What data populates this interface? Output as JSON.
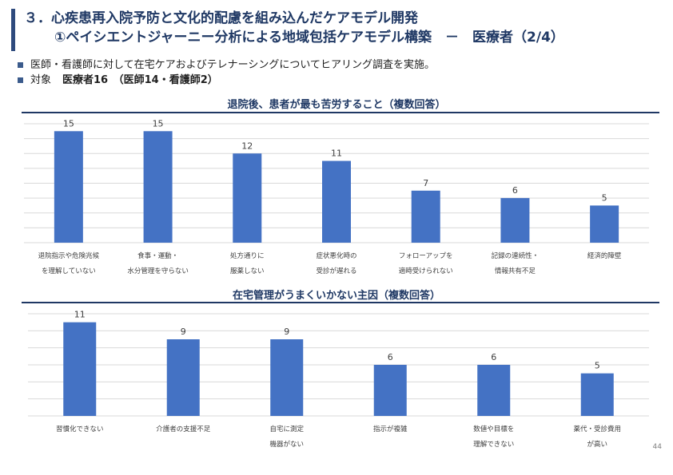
{
  "title": {
    "line1": "３．心疾患再入院予防と文化的配慮を組み込んだケアモデル開発",
    "line2": "①ペイシエントジャーニー分析による地域包括ケアモデル構築　－　医療者（2/4）"
  },
  "bullets": [
    {
      "text": "医師・看護師に対して在宅ケアおよびテレナーシングについてヒアリング調査を実施。",
      "strong": ""
    },
    {
      "text": "対象",
      "strong": "医療者16　（医師14・看護師2）"
    }
  ],
  "page_number": "44",
  "colors": {
    "bar": "#4472c4",
    "rule": "#1f3864",
    "grid": "#d9d9d9"
  },
  "chart_data": [
    {
      "type": "bar",
      "title": "退院後、患者が最も苦労すること（複数回答）",
      "categories": [
        [
          "退院指示や危険兆候",
          "を理解していない"
        ],
        [
          "食事・運動・",
          "水分管理を守らない"
        ],
        [
          "処方通りに",
          "服薬しない"
        ],
        [
          "症状悪化時の",
          "受診が遅れる"
        ],
        [
          "フォローアップを",
          "適時受けられない"
        ],
        [
          "記録の連続性・",
          "情報共有不足"
        ],
        [
          "経済的障壁"
        ]
      ],
      "values": [
        15,
        15,
        12,
        11,
        7,
        6,
        5
      ],
      "ylim": [
        0,
        16
      ],
      "grid": true
    },
    {
      "type": "bar",
      "title": "在宅管理がうまくいかない主因（複数回答）",
      "categories": [
        [
          "習慣化できない"
        ],
        [
          "介護者の支援不足"
        ],
        [
          "自宅に測定",
          "機器がない"
        ],
        [
          "指示が複雑"
        ],
        [
          "数値や目標を",
          "理解できない"
        ],
        [
          "薬代・受診費用",
          "が高い"
        ]
      ],
      "values": [
        11,
        9,
        9,
        6,
        6,
        5
      ],
      "ylim": [
        0,
        12
      ],
      "grid": true
    }
  ]
}
